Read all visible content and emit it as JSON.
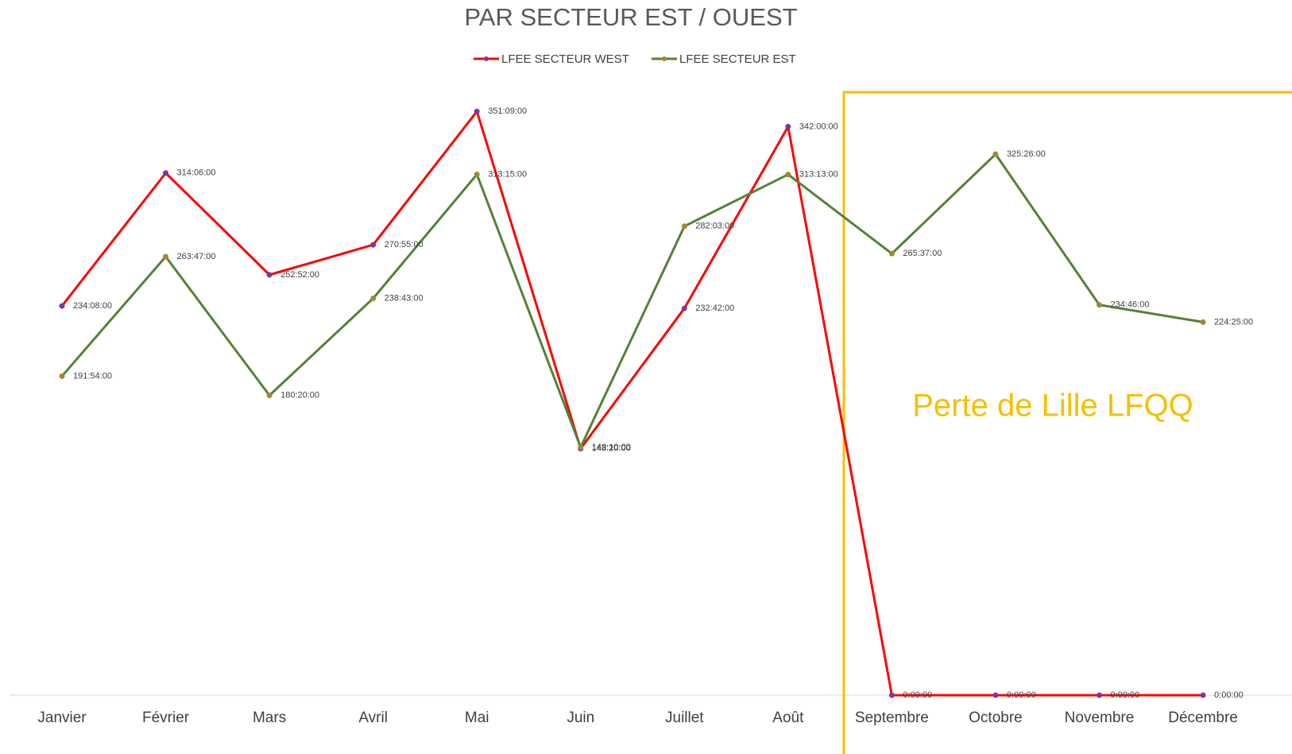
{
  "chart_data": {
    "type": "line",
    "title": "PAR SECTEUR EST / OUEST",
    "categories": [
      "Janvier",
      "Février",
      "Mars",
      "Avril",
      "Mai",
      "Juin",
      "Juillet",
      "Août",
      "Septembre",
      "Octobre",
      "Novembre",
      "Décembre"
    ],
    "ylim": [
      0,
      400
    ],
    "series": [
      {
        "name": "LFEE SECTEUR WEST",
        "color": "#ff0000",
        "marker_color": "#7a3a9a",
        "values": [
          234.1333,
          314.1,
          252.8667,
          270.9167,
          351.15,
          148.3333,
          232.7,
          342,
          0,
          0,
          0,
          0
        ],
        "value_labels": [
          "234:08:00",
          "314:06:00",
          "252:52:00",
          "270:55:00",
          "351:09:00",
          "148:20:00",
          "232:42:00",
          "342:00:00",
          "0:00:00",
          "0:00:00",
          "0:00:00",
          "0:00:00"
        ]
      },
      {
        "name": "LFEE SECTEUR EST",
        "color": "#548235",
        "marker_color": "#a08a30",
        "values": [
          191.9,
          263.7833,
          180.3333,
          238.7167,
          313.25,
          149.1667,
          282.05,
          313.2167,
          265.6167,
          325.4333,
          234.7667,
          224.4167
        ],
        "value_labels": [
          "191:54:00",
          "263:47:00",
          "180:20:00",
          "238:43:00",
          "313:15:00",
          "149:10:00",
          "282:03:00",
          "313:13:00",
          "265:37:00",
          "325:26:00",
          "234:46:00",
          "224:25:00"
        ]
      }
    ],
    "annotation": "Perte de Lille LFQQ",
    "annotation_color": "#f5c000"
  }
}
